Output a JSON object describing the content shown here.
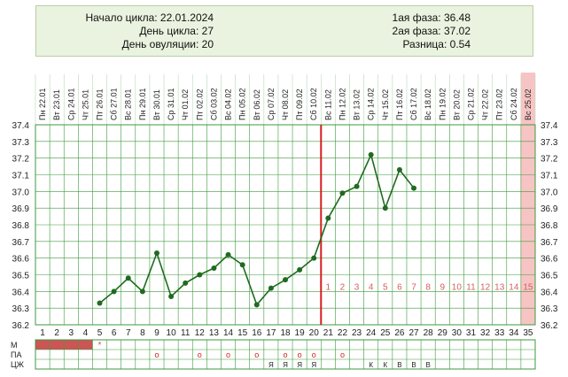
{
  "summary": {
    "cycle_start": "Начало цикла: 22.01.2024",
    "cycle_day": "День цикла: 27",
    "ovulation_day": "День овуляции: 20",
    "phase1": "1ая фаза: 36.48",
    "phase2": "2ая фаза: 37.02",
    "difference": "Разница: 0.54"
  },
  "chart_data": {
    "type": "line",
    "title": "",
    "xlabel": "",
    "ylabel": "",
    "ylim": [
      36.2,
      37.4
    ],
    "y_ticks": [
      "37.4",
      "37.3",
      "37.2",
      "37.1",
      "37.0",
      "36.9",
      "36.8",
      "36.7",
      "36.6",
      "36.5",
      "36.4",
      "36.3",
      "36.2"
    ],
    "day_numbers": [
      1,
      2,
      3,
      4,
      5,
      6,
      7,
      8,
      9,
      10,
      11,
      12,
      13,
      14,
      15,
      16,
      17,
      18,
      19,
      20,
      21,
      22,
      23,
      24,
      25,
      26,
      27,
      28,
      29,
      30,
      31,
      32,
      33,
      34,
      35
    ],
    "dates": [
      "22.01",
      "23.01",
      "24.01",
      "25.01",
      "26.01",
      "27.01",
      "28.01",
      "29.01",
      "30.01",
      "31.01",
      "01.02",
      "02.02",
      "03.02",
      "04.02",
      "05.02",
      "06.02",
      "07.02",
      "08.02",
      "09.02",
      "10.02",
      "11.02",
      "12.02",
      "13.02",
      "14.02",
      "15.02",
      "16.02",
      "17.02",
      "18.02",
      "19.02",
      "20.02",
      "21.02",
      "22.02",
      "23.02",
      "24.02",
      "25.02"
    ],
    "weekdays": [
      "Пн",
      "Вт",
      "Ср",
      "Чт",
      "Пт",
      "Сб",
      "Вс",
      "Пн",
      "Вт",
      "Ср",
      "Чт",
      "Пт",
      "Сб",
      "Вс",
      "Пн",
      "Вт",
      "Ср",
      "Чт",
      "Пт",
      "Сб",
      "Вс",
      "Пн",
      "Вт",
      "Ср",
      "Чт",
      "Пт",
      "Сб",
      "Вс",
      "Пн",
      "Вт",
      "Ср",
      "Чт",
      "Пт",
      "Сб",
      "Вс"
    ],
    "series": [
      {
        "x": [
          5,
          6,
          7,
          8,
          9,
          10,
          11,
          12,
          13,
          14,
          15,
          16,
          17,
          18,
          19,
          20,
          21,
          22,
          23,
          24,
          25,
          26,
          27
        ],
        "values": [
          36.33,
          36.4,
          36.48,
          36.4,
          36.63,
          36.37,
          36.45,
          36.5,
          36.54,
          36.62,
          36.56,
          36.32,
          36.42,
          36.47,
          36.53,
          36.6,
          36.84,
          36.99,
          37.03,
          37.22,
          36.9,
          37.13,
          37.02
        ]
      }
    ],
    "ovulation_day": 20,
    "luteal_numbers": [
      "1",
      "2",
      "3",
      "4",
      "5",
      "6",
      "7",
      "8",
      "9",
      "10",
      "11",
      "12",
      "13",
      "14",
      "15"
    ],
    "luteal_highlight_day": 35,
    "grid": true,
    "rows": {
      "labels": [
        "М",
        "ПА",
        "ЦЖ"
      ],
      "menstruation_days": [
        1,
        2,
        3,
        4
      ],
      "menstruation_star_day": 5,
      "star": "*",
      "pa_marks": [
        {
          "day": 9,
          "mark": "о"
        },
        {
          "day": 12,
          "mark": "о"
        },
        {
          "day": 14,
          "mark": "о"
        },
        {
          "day": 16,
          "mark": "о"
        },
        {
          "day": 18,
          "mark": "о"
        },
        {
          "day": 19,
          "mark": "о"
        },
        {
          "day": 20,
          "mark": "о"
        },
        {
          "day": 22,
          "mark": "о"
        }
      ],
      "cm_marks": [
        {
          "day": 17,
          "mark": "Я"
        },
        {
          "day": 18,
          "mark": "Я"
        },
        {
          "day": 19,
          "mark": "Я"
        },
        {
          "day": 20,
          "mark": "Я"
        },
        {
          "day": 24,
          "mark": "К"
        },
        {
          "day": 25,
          "mark": "К"
        },
        {
          "day": 26,
          "mark": "В"
        },
        {
          "day": 27,
          "mark": "В"
        },
        {
          "day": 28,
          "mark": "В"
        }
      ]
    },
    "colors": {
      "line": "#1f6b1f",
      "grid": "#3c9a3c",
      "ovulation": "#d51f1f",
      "luteal_text": "#d46060",
      "highlight": "#f7c4c4",
      "menstruation": "#cc5555"
    }
  }
}
